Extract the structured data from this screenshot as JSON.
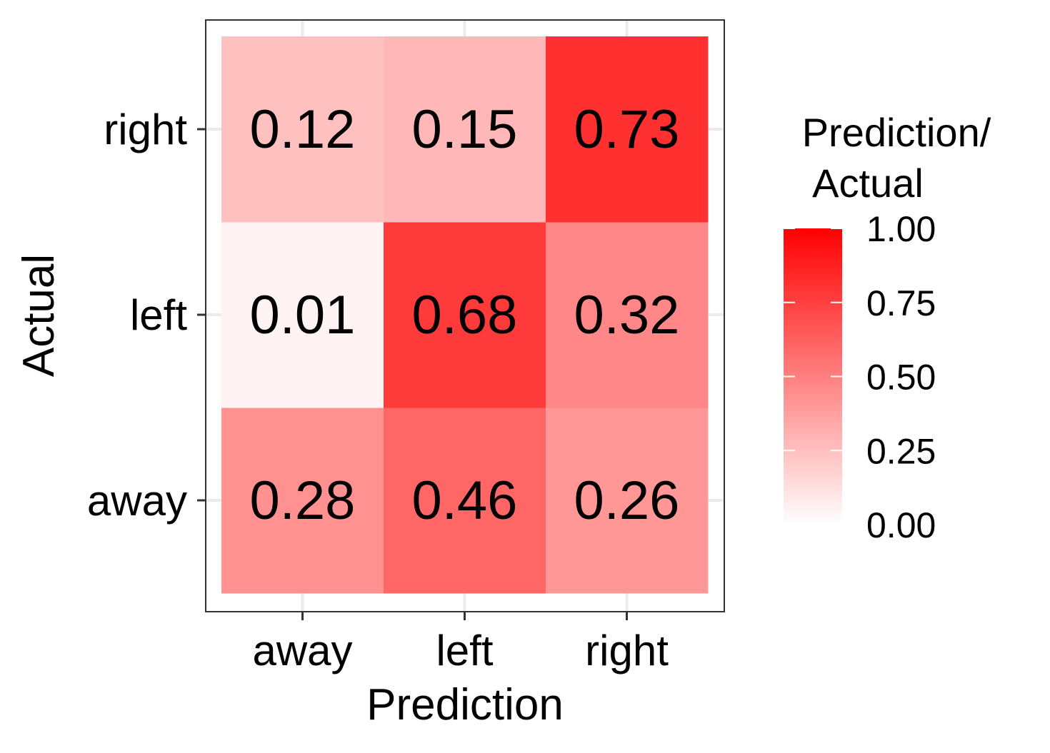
{
  "chart_data": {
    "type": "heatmap",
    "xlabel": "Prediction",
    "ylabel": "Actual",
    "x_categories": [
      "away",
      "left",
      "right"
    ],
    "y_categories": [
      "away",
      "left",
      "right"
    ],
    "values": [
      [
        0.28,
        0.46,
        0.26
      ],
      [
        0.01,
        0.68,
        0.32
      ],
      [
        0.12,
        0.15,
        0.73
      ]
    ],
    "value_labels": [
      [
        "0.28",
        "0.46",
        "0.26"
      ],
      [
        "0.01",
        "0.68",
        "0.32"
      ],
      [
        "0.12",
        "0.15",
        "0.73"
      ]
    ],
    "legend": {
      "title_lines": [
        "Prediction/",
        "Actual"
      ],
      "placement": "right",
      "range": [
        0,
        1
      ],
      "tick_values": [
        0,
        0.25,
        0.5,
        0.75,
        1
      ],
      "tick_labels": [
        "0.00",
        "0.25",
        "0.50",
        "0.75",
        "1.00"
      ]
    },
    "colors": {
      "low": "#ffffff",
      "high": "#ff0000"
    },
    "grid": true
  }
}
